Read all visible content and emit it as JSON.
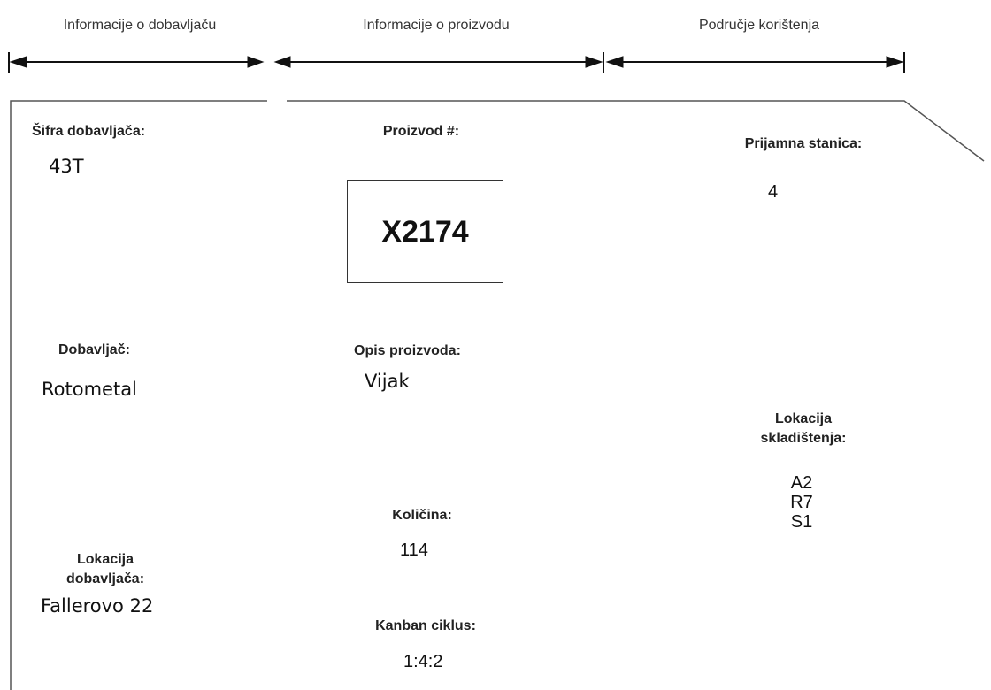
{
  "headers": {
    "supplier_info": "Informacije o dobavljaču",
    "product_info": "Informacije o proizvodu",
    "usage_area": "Područje korištenja"
  },
  "supplier": {
    "code_label": "Šifra dobavljača:",
    "code_value": "43T",
    "name_label": "Dobavljač:",
    "name_value": "Rotometal",
    "location_label_line1": "Lokacija",
    "location_label_line2": "dobavljača:",
    "location_value": "Fallerovo 22"
  },
  "product": {
    "number_label": "Proizvod #:",
    "number_value": "X2174",
    "description_label": "Opis proizvoda:",
    "description_value": "Vijak",
    "quantity_label": "Količina:",
    "quantity_value": "114",
    "kanban_label": "Kanban ciklus:",
    "kanban_value": "1:4:2"
  },
  "usage": {
    "station_label": "Prijamna stanica:",
    "station_value": "4",
    "storage_label_line1": "Lokacija",
    "storage_label_line2": "skladištenja:",
    "storage_value_line1": "A2",
    "storage_value_line2": "R7",
    "storage_value_line3": "S1"
  }
}
